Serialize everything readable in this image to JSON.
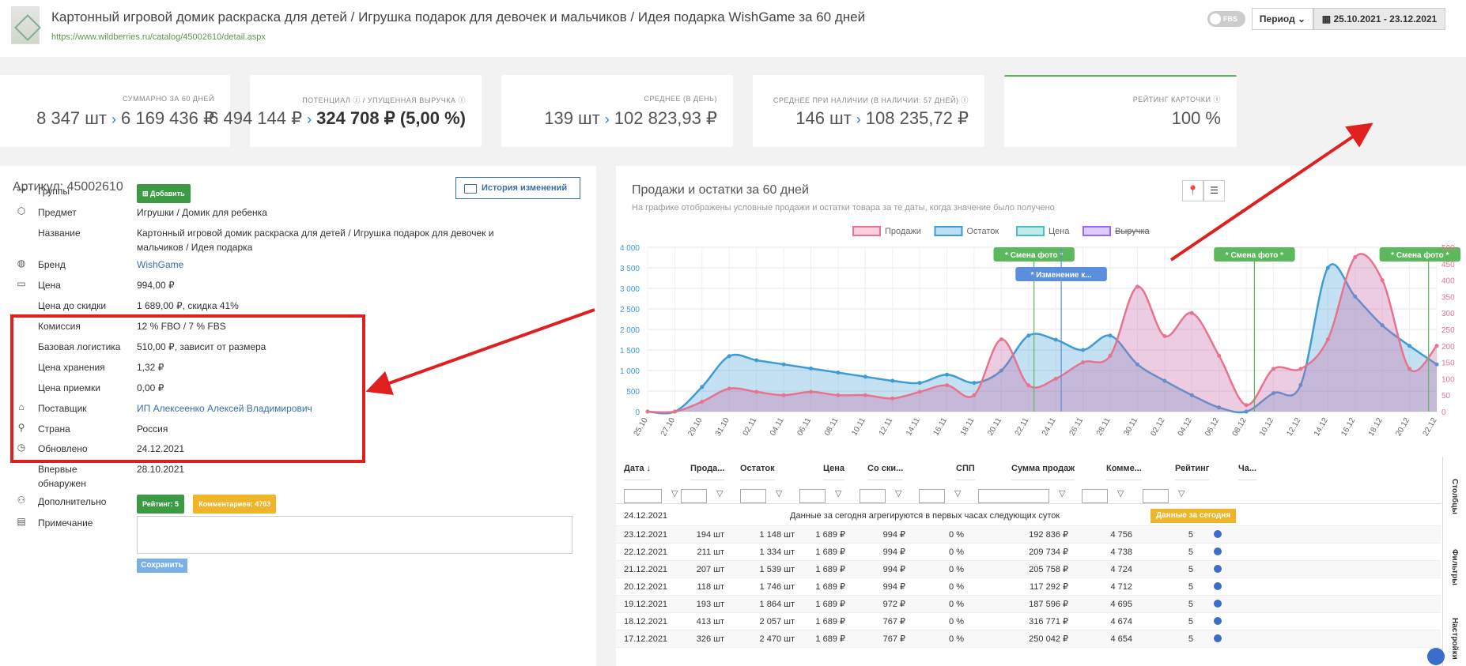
{
  "header": {
    "title": "Картонный игровой домик раскраска для детей / Игрушка подарок для девочек и мальчиков / Идея подарка WishGame за 60 дней",
    "url": "https://www.wildberries.ru/catalog/45002610/detail.aspx",
    "fbs": "FBS",
    "period": "Период",
    "dates": "25.10.2021 - 23.12.2021"
  },
  "cards": [
    {
      "label": "Суммарно за 60 дней",
      "a": "8 347 шт",
      "b": "6 169 436 ₽"
    },
    {
      "label": "Потенциал ⓘ / Упущенная выручка ⓘ",
      "a": "6 494 144 ₽",
      "b": "324 708 ₽ (5,00 %)"
    },
    {
      "label": "Среднее (в день)",
      "a": "139 шт",
      "b": "102 823,93 ₽"
    },
    {
      "label": "Среднее при наличии (в наличии: 57 дней) ⓘ",
      "a": "146 шт",
      "b": "108 235,72 ₽"
    },
    {
      "label": "Рейтинг карточки ⓘ",
      "a": "100 %"
    }
  ],
  "product": {
    "article": "Артикул: 45002610",
    "history_btn": "История изменений",
    "rows": [
      {
        "k": "Группы",
        "icon": "sitemap-icon",
        "badge": "⊞ Добавить"
      },
      {
        "k": "Предмет",
        "icon": "cube-icon",
        "v": "Игрушки / Домик для ребенка"
      },
      {
        "k": "Название",
        "v": "Картонный игровой домик раскраска для детей / Игрушка подарок для девочек и мальчиков / Идея подарка"
      },
      {
        "k": "Бренд",
        "icon": "globe-icon",
        "v": "WishGame"
      },
      {
        "k": "Цена",
        "icon": "money-icon",
        "v": "994,00 ₽"
      },
      {
        "k": "Цена до скидки",
        "v": "1 689,00 ₽, скидка 41%"
      },
      {
        "k": "Комиссия",
        "v": "12 % FBO / 7 % FBS"
      },
      {
        "k": "Базовая логистика",
        "v": "510,00 ₽, зависит от размера"
      },
      {
        "k": "Цена хранения",
        "v": "1,32 ₽"
      },
      {
        "k": "Цена приемки",
        "v": "0,00 ₽"
      },
      {
        "k": "Поставщик",
        "icon": "warehouse-icon",
        "v": "ИП Алексеенко Алексей Владимирович"
      },
      {
        "k": "Страна",
        "icon": "map-pin-icon",
        "v": "Россия"
      },
      {
        "k": "Обновлено",
        "icon": "clock-icon",
        "v": "24.12.2021"
      },
      {
        "k": "Впервые обнаружен",
        "v": "28.10.2021"
      },
      {
        "k": "Дополнительно",
        "icon": "users-icon",
        "badge1": "Рейтинг: 5",
        "badge2": "Комментариев: 4763"
      },
      {
        "k": "Примечание",
        "icon": "comment-icon"
      }
    ],
    "save_btn": "Сохранить"
  },
  "chart": {
    "title": "Продажи и остатки за 60 дней",
    "subtitle": "На графике отображены условные продажи и остатки товара за те даты, когда значение было получено",
    "legend": [
      "Продажи",
      "Остаток",
      "Цена",
      "Выручка"
    ],
    "annotations": [
      "* Смена фото *",
      "* Изменение к...",
      "* Смена фото *",
      "* Смена фото *"
    ],
    "colors": {
      "sales": "#e8738e",
      "stock": "#3d9bd6",
      "price": "#4bc0c0",
      "revenue": "#9966ff",
      "marker": "#5cb85c"
    }
  },
  "chart_data": {
    "type": "line",
    "x": [
      "25.10",
      "27.10",
      "29.10",
      "31.10",
      "02.11",
      "04.11",
      "06.11",
      "08.11",
      "10.11",
      "12.11",
      "14.11",
      "16.11",
      "18.11",
      "20.11",
      "22.11",
      "24.11",
      "26.11",
      "28.11",
      "30.11",
      "02.12",
      "04.12",
      "06.12",
      "08.12",
      "10.12",
      "12.12",
      "14.12",
      "16.12",
      "18.12",
      "20.12",
      "22.12"
    ],
    "y_left_ticks": [
      "0",
      "500",
      "1 000",
      "1 500",
      "2 000",
      "2 500",
      "3 000",
      "3 500",
      "4 000"
    ],
    "y_right_ticks": [
      "0",
      "50",
      "100",
      "150",
      "200",
      "250",
      "300",
      "350",
      "400",
      "450",
      "500"
    ],
    "ylim_left": [
      0,
      4000
    ],
    "ylim_right": [
      0,
      500
    ],
    "series": [
      {
        "name": "Остаток",
        "axis": "left",
        "values": [
          0,
          0,
          600,
          1350,
          1250,
          1150,
          1050,
          950,
          850,
          750,
          700,
          900,
          700,
          1000,
          1850,
          1750,
          1500,
          1850,
          1150,
          750,
          400,
          100,
          0,
          450,
          650,
          3500,
          2800,
          2100,
          1600,
          1150
        ]
      },
      {
        "name": "Продажи",
        "axis": "right",
        "values": [
          0,
          0,
          30,
          70,
          60,
          50,
          60,
          50,
          50,
          40,
          60,
          80,
          50,
          220,
          80,
          100,
          150,
          170,
          380,
          230,
          300,
          170,
          20,
          130,
          130,
          220,
          470,
          400,
          130,
          200
        ]
      }
    ]
  },
  "table": {
    "headers": [
      "Дата ↓",
      "Прода...",
      "Остаток",
      "Цена",
      "Со ски...",
      "СПП",
      "Сумма продаж",
      "Комме...",
      "Рейтинг",
      "Ча..."
    ],
    "today_row": {
      "date": "24.12.2021",
      "msg": "Данные за сегодня агрегируются в первых часах следующих суток",
      "badge": "Данные за сегодня"
    },
    "rows": [
      [
        "23.12.2021",
        "194 шт",
        "1 148 шт",
        "1 689 ₽",
        "994 ₽",
        "0 %",
        "192 836 ₽",
        "4 756",
        "5"
      ],
      [
        "22.12.2021",
        "211 шт",
        "1 334 шт",
        "1 689 ₽",
        "994 ₽",
        "0 %",
        "209 734 ₽",
        "4 738",
        "5"
      ],
      [
        "21.12.2021",
        "207 шт",
        "1 539 шт",
        "1 689 ₽",
        "994 ₽",
        "0 %",
        "205 758 ₽",
        "4 724",
        "5"
      ],
      [
        "20.12.2021",
        "118 шт",
        "1 746 шт",
        "1 689 ₽",
        "994 ₽",
        "0 %",
        "117 292 ₽",
        "4 712",
        "5"
      ],
      [
        "19.12.2021",
        "193 шт",
        "1 864 шт",
        "1 689 ₽",
        "972 ₽",
        "0 %",
        "187 596 ₽",
        "4 695",
        "5"
      ],
      [
        "18.12.2021",
        "413 шт",
        "2 057 шт",
        "1 689 ₽",
        "767 ₽",
        "0 %",
        "316 771 ₽",
        "4 674",
        "5"
      ],
      [
        "17.12.2021",
        "326 шт",
        "2 470 шт",
        "1 689 ₽",
        "767 ₽",
        "0 %",
        "250 042 ₽",
        "4 654",
        "5"
      ]
    ],
    "side_tabs": [
      "Столбцы",
      "Фильтры",
      "Настройки"
    ]
  }
}
